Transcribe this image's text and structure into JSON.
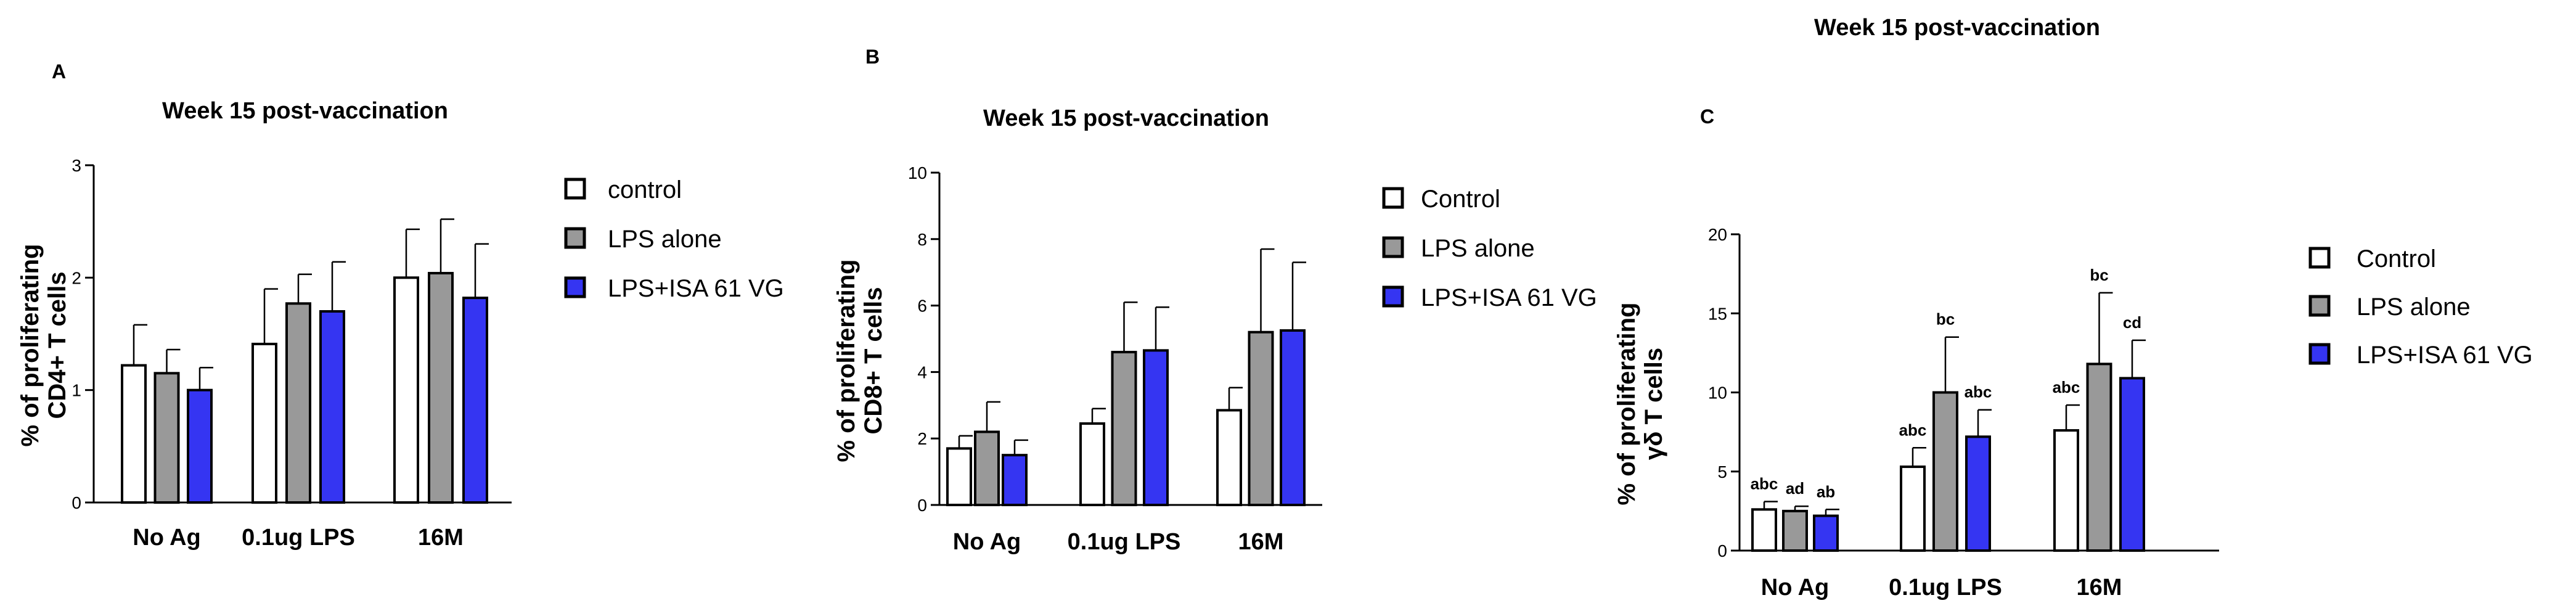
{
  "colors": {
    "control": "#ffffff",
    "lps_alone": "#999999",
    "lps_isa": "#3535f2",
    "stroke": "#000000"
  },
  "chart_data": [
    {
      "panel": "A",
      "type": "bar",
      "title": "Week 15 post-vaccination",
      "ylabel_lines": [
        "% of proliferating",
        "CD4+ T cells"
      ],
      "xlabel": "",
      "categories": [
        "No Ag",
        "0.1ug LPS",
        "16M"
      ],
      "ylim": [
        0,
        3
      ],
      "yticks": [
        0,
        1,
        2,
        3
      ],
      "series": [
        {
          "name": "control",
          "color_key": "control",
          "values": [
            1.22,
            1.41,
            2.0
          ],
          "errors": [
            0.36,
            0.49,
            0.43
          ]
        },
        {
          "name": "LPS alone",
          "color_key": "lps_alone",
          "values": [
            1.15,
            1.77,
            2.04
          ],
          "errors": [
            0.21,
            0.26,
            0.48
          ]
        },
        {
          "name": "LPS+ISA 61 VG",
          "color_key": "lps_isa",
          "values": [
            1.0,
            1.7,
            1.82
          ],
          "errors": [
            0.2,
            0.44,
            0.48
          ]
        }
      ],
      "legend": [
        "control",
        "LPS alone",
        "LPS+ISA 61 VG"
      ]
    },
    {
      "panel": "B",
      "type": "bar",
      "title": "Week 15 post-vaccination",
      "ylabel_lines": [
        "% of proliferating",
        "CD8+ T cells"
      ],
      "xlabel": "",
      "categories": [
        "No Ag",
        "0.1ug LPS",
        "16M"
      ],
      "ylim": [
        0,
        10
      ],
      "yticks": [
        0,
        2,
        4,
        6,
        8,
        10
      ],
      "series": [
        {
          "name": "Control",
          "color_key": "control",
          "values": [
            1.7,
            2.45,
            2.85
          ],
          "errors": [
            0.38,
            0.45,
            0.68
          ]
        },
        {
          "name": "LPS alone",
          "color_key": "lps_alone",
          "values": [
            2.2,
            4.6,
            5.2
          ],
          "errors": [
            0.9,
            1.5,
            2.5
          ]
        },
        {
          "name": "LPS+ISA 61 VG",
          "color_key": "lps_isa",
          "values": [
            1.5,
            4.65,
            5.25
          ],
          "errors": [
            0.45,
            1.3,
            2.05
          ]
        }
      ],
      "legend": [
        "Control",
        "LPS alone",
        "LPS+ISA 61 VG"
      ]
    },
    {
      "panel": "C",
      "type": "bar",
      "title": "Week 15 post-vaccination",
      "ylabel_lines": [
        "% of proliferating",
        "γδ T cells"
      ],
      "xlabel": "",
      "categories": [
        "No Ag",
        "0.1ug LPS",
        "16M"
      ],
      "ylim": [
        0,
        20
      ],
      "yticks": [
        0,
        5,
        10,
        15,
        20
      ],
      "series": [
        {
          "name": "Control",
          "color_key": "control",
          "values": [
            2.6,
            5.3,
            7.6
          ],
          "errors": [
            0.5,
            1.2,
            1.6
          ],
          "labels": [
            "abc",
            "abc",
            "abc"
          ]
        },
        {
          "name": "LPS alone",
          "color_key": "lps_alone",
          "values": [
            2.5,
            10.0,
            11.8
          ],
          "errors": [
            0.3,
            3.5,
            4.5
          ],
          "labels": [
            "ad",
            "bc",
            "bc"
          ]
        },
        {
          "name": "LPS+ISA 61 VG",
          "color_key": "lps_isa",
          "values": [
            2.2,
            7.2,
            10.9
          ],
          "errors": [
            0.4,
            1.7,
            2.4
          ],
          "labels": [
            "ab",
            "abc",
            "cd"
          ]
        }
      ],
      "legend": [
        "Control",
        "LPS alone",
        "LPS+ISA 61 VG"
      ]
    }
  ]
}
